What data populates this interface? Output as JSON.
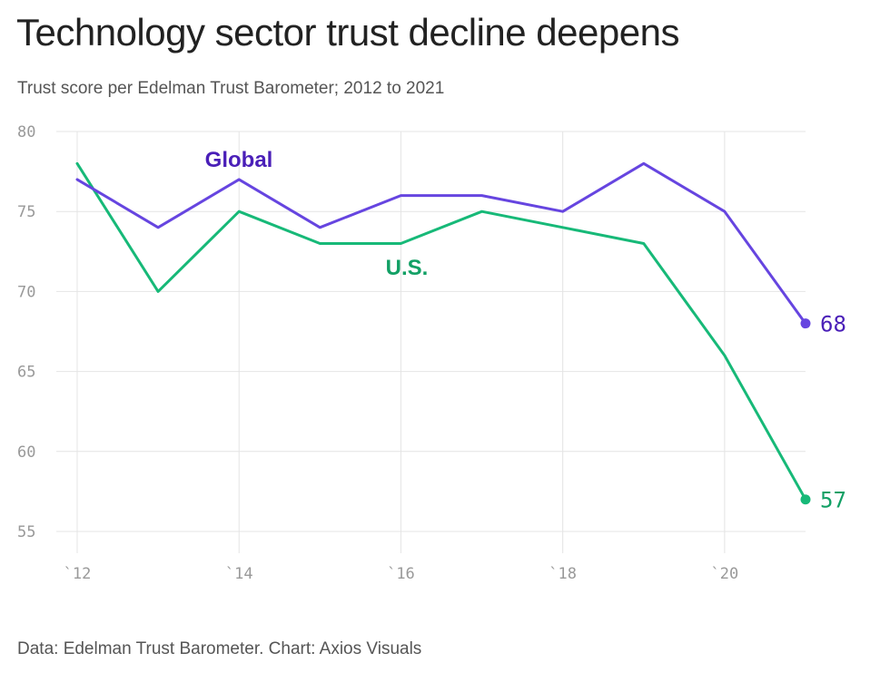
{
  "title": "Technology sector trust decline deepens",
  "subtitle": "Trust score per Edelman Trust Barometer; 2012 to 2021",
  "source": "Data: Edelman Trust Barometer. Chart: Axios Visuals",
  "colors": {
    "global": "#6645e0",
    "global_label": "#4a1fb8",
    "us": "#17b978",
    "us_label": "#12a065",
    "grid": "#e4e4e4",
    "tick_text": "#999999"
  },
  "chart_data": {
    "type": "line",
    "title": "Technology sector trust decline deepens",
    "subtitle": "Trust score per Edelman Trust Barometer; 2012 to 2021",
    "x": [
      2012,
      2013,
      2014,
      2015,
      2016,
      2017,
      2018,
      2019,
      2020,
      2021
    ],
    "xlim": [
      2012,
      2021
    ],
    "ylim": [
      55,
      80
    ],
    "y_ticks": [
      55,
      60,
      65,
      70,
      75,
      80
    ],
    "x_ticks": [
      2012,
      2014,
      2016,
      2018,
      2020
    ],
    "x_tick_labels": [
      "`12",
      "`14",
      "`16",
      "`18",
      "`20"
    ],
    "grid": true,
    "series": [
      {
        "key": "global",
        "name": "Global",
        "values": [
          77,
          74,
          77,
          74,
          76,
          76,
          75,
          78,
          75,
          68
        ],
        "end_label": "68"
      },
      {
        "key": "us",
        "name": "U.S.",
        "values": [
          78,
          70,
          75,
          73,
          73,
          75,
          74,
          73,
          66,
          57
        ],
        "end_label": "57"
      }
    ]
  }
}
